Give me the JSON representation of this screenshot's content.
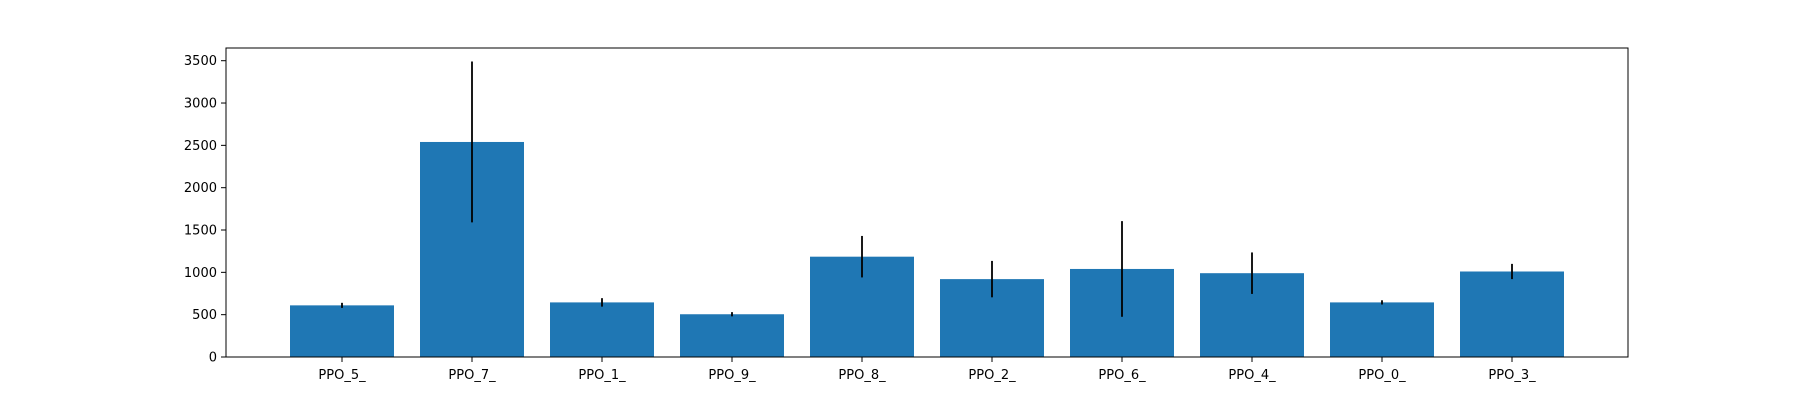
{
  "chart_data": {
    "type": "bar",
    "categories": [
      "PPO_5_",
      "PPO_7_",
      "PPO_1_",
      "PPO_9_",
      "PPO_8_",
      "PPO_2_",
      "PPO_6_",
      "PPO_4_",
      "PPO_0_",
      "PPO_3_"
    ],
    "values": [
      610,
      2540,
      645,
      505,
      1185,
      920,
      1040,
      990,
      645,
      1010
    ],
    "error": [
      30,
      950,
      50,
      25,
      245,
      215,
      565,
      245,
      25,
      90
    ],
    "ylim": [
      0,
      3650
    ],
    "yticks": [
      0,
      500,
      1000,
      1500,
      2000,
      2500,
      3000,
      3500
    ],
    "title": "",
    "xlabel": "",
    "ylabel": "",
    "grid": false,
    "bar_color": "#1f77b4",
    "error_color": "#000000"
  }
}
